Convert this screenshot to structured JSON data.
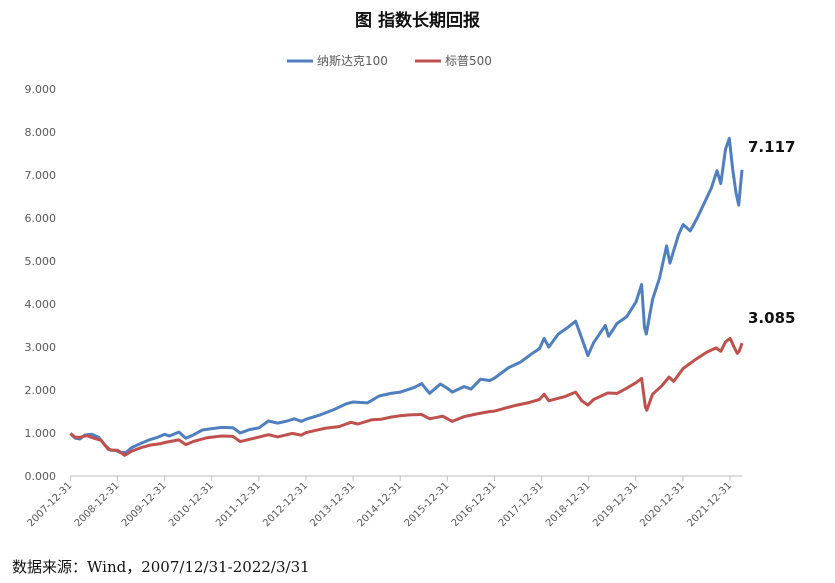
{
  "title": "图  指数长期回报",
  "source": "数据来源：Wind，2007/12/31-2022/3/31",
  "chart_data": {
    "type": "line",
    "title": "图  指数长期回报",
    "xlabel": "",
    "ylabel": "",
    "ylim": [
      0,
      9
    ],
    "yticks": [
      "0.000",
      "1.000",
      "2.000",
      "3.000",
      "4.000",
      "5.000",
      "6.000",
      "7.000",
      "8.000",
      "9.000"
    ],
    "xticks": [
      "2007-12-31",
      "2008-12-31",
      "2009-12-31",
      "2010-12-31",
      "2011-12-31",
      "2012-12-31",
      "2013-12-31",
      "2014-12-31",
      "2015-12-31",
      "2016-12-31",
      "2017-12-31",
      "2018-12-31",
      "2019-12-31",
      "2020-12-31",
      "2021-12-31"
    ],
    "x_range": [
      2007.99,
      2022.25
    ],
    "legend_position": "top-center",
    "grid": false,
    "series": [
      {
        "name": "纳斯达克100",
        "color": "#4F7FBF",
        "end_label": "7.117",
        "points": [
          [
            2008.0,
            0.98
          ],
          [
            2008.1,
            0.88
          ],
          [
            2008.2,
            0.86
          ],
          [
            2008.3,
            0.95
          ],
          [
            2008.45,
            0.97
          ],
          [
            2008.6,
            0.9
          ],
          [
            2008.75,
            0.7
          ],
          [
            2008.85,
            0.6
          ],
          [
            2008.95,
            0.6
          ],
          [
            2009.05,
            0.55
          ],
          [
            2009.18,
            0.55
          ],
          [
            2009.3,
            0.66
          ],
          [
            2009.5,
            0.76
          ],
          [
            2009.7,
            0.85
          ],
          [
            2009.85,
            0.9
          ],
          [
            2010.0,
            0.97
          ],
          [
            2010.1,
            0.93
          ],
          [
            2010.3,
            1.02
          ],
          [
            2010.45,
            0.88
          ],
          [
            2010.6,
            0.95
          ],
          [
            2010.8,
            1.07
          ],
          [
            2011.0,
            1.1
          ],
          [
            2011.2,
            1.13
          ],
          [
            2011.45,
            1.12
          ],
          [
            2011.6,
            1.0
          ],
          [
            2011.8,
            1.08
          ],
          [
            2012.0,
            1.12
          ],
          [
            2012.2,
            1.28
          ],
          [
            2012.4,
            1.23
          ],
          [
            2012.6,
            1.28
          ],
          [
            2012.75,
            1.33
          ],
          [
            2012.9,
            1.27
          ],
          [
            2013.0,
            1.32
          ],
          [
            2013.3,
            1.42
          ],
          [
            2013.6,
            1.55
          ],
          [
            2013.85,
            1.68
          ],
          [
            2014.0,
            1.72
          ],
          [
            2014.3,
            1.7
          ],
          [
            2014.55,
            1.86
          ],
          [
            2014.8,
            1.92
          ],
          [
            2015.0,
            1.95
          ],
          [
            2015.3,
            2.06
          ],
          [
            2015.45,
            2.15
          ],
          [
            2015.62,
            1.92
          ],
          [
            2015.85,
            2.14
          ],
          [
            2016.0,
            2.04
          ],
          [
            2016.1,
            1.95
          ],
          [
            2016.35,
            2.08
          ],
          [
            2016.5,
            2.02
          ],
          [
            2016.7,
            2.25
          ],
          [
            2016.9,
            2.22
          ],
          [
            2017.0,
            2.28
          ],
          [
            2017.3,
            2.52
          ],
          [
            2017.55,
            2.65
          ],
          [
            2017.8,
            2.85
          ],
          [
            2017.95,
            2.96
          ],
          [
            2018.05,
            3.2
          ],
          [
            2018.15,
            3.0
          ],
          [
            2018.35,
            3.3
          ],
          [
            2018.55,
            3.45
          ],
          [
            2018.72,
            3.6
          ],
          [
            2018.85,
            3.2
          ],
          [
            2018.98,
            2.8
          ],
          [
            2019.1,
            3.1
          ],
          [
            2019.35,
            3.5
          ],
          [
            2019.42,
            3.25
          ],
          [
            2019.6,
            3.55
          ],
          [
            2019.8,
            3.7
          ],
          [
            2020.0,
            4.05
          ],
          [
            2020.12,
            4.45
          ],
          [
            2020.18,
            3.45
          ],
          [
            2020.22,
            3.3
          ],
          [
            2020.35,
            4.1
          ],
          [
            2020.5,
            4.6
          ],
          [
            2020.65,
            5.35
          ],
          [
            2020.72,
            4.95
          ],
          [
            2020.9,
            5.6
          ],
          [
            2021.0,
            5.85
          ],
          [
            2021.15,
            5.7
          ],
          [
            2021.3,
            6.0
          ],
          [
            2021.45,
            6.35
          ],
          [
            2021.6,
            6.7
          ],
          [
            2021.72,
            7.1
          ],
          [
            2021.8,
            6.8
          ],
          [
            2021.9,
            7.6
          ],
          [
            2021.98,
            7.85
          ],
          [
            2022.05,
            7.15
          ],
          [
            2022.12,
            6.6
          ],
          [
            2022.18,
            6.3
          ],
          [
            2022.25,
            7.12
          ]
        ]
      },
      {
        "name": "标普500",
        "color": "#C0504D",
        "end_label": "3.085",
        "points": [
          [
            2008.0,
            0.99
          ],
          [
            2008.1,
            0.9
          ],
          [
            2008.2,
            0.9
          ],
          [
            2008.35,
            0.94
          ],
          [
            2008.5,
            0.88
          ],
          [
            2008.65,
            0.83
          ],
          [
            2008.8,
            0.62
          ],
          [
            2008.9,
            0.6
          ],
          [
            2009.0,
            0.6
          ],
          [
            2009.15,
            0.48
          ],
          [
            2009.3,
            0.58
          ],
          [
            2009.5,
            0.66
          ],
          [
            2009.7,
            0.72
          ],
          [
            2009.9,
            0.75
          ],
          [
            2010.0,
            0.78
          ],
          [
            2010.3,
            0.84
          ],
          [
            2010.45,
            0.73
          ],
          [
            2010.6,
            0.8
          ],
          [
            2010.9,
            0.89
          ],
          [
            2011.2,
            0.93
          ],
          [
            2011.45,
            0.92
          ],
          [
            2011.6,
            0.8
          ],
          [
            2011.9,
            0.88
          ],
          [
            2012.2,
            0.96
          ],
          [
            2012.4,
            0.91
          ],
          [
            2012.7,
            0.99
          ],
          [
            2012.9,
            0.95
          ],
          [
            2013.0,
            1.01
          ],
          [
            2013.4,
            1.11
          ],
          [
            2013.7,
            1.15
          ],
          [
            2013.95,
            1.25
          ],
          [
            2014.1,
            1.21
          ],
          [
            2014.4,
            1.31
          ],
          [
            2014.6,
            1.32
          ],
          [
            2014.8,
            1.37
          ],
          [
            2014.99,
            1.4
          ],
          [
            2015.2,
            1.42
          ],
          [
            2015.45,
            1.43
          ],
          [
            2015.62,
            1.33
          ],
          [
            2015.9,
            1.39
          ],
          [
            2016.1,
            1.27
          ],
          [
            2016.35,
            1.38
          ],
          [
            2016.6,
            1.44
          ],
          [
            2016.9,
            1.5
          ],
          [
            2017.0,
            1.51
          ],
          [
            2017.4,
            1.63
          ],
          [
            2017.7,
            1.7
          ],
          [
            2017.95,
            1.78
          ],
          [
            2018.05,
            1.9
          ],
          [
            2018.15,
            1.75
          ],
          [
            2018.5,
            1.85
          ],
          [
            2018.72,
            1.95
          ],
          [
            2018.85,
            1.75
          ],
          [
            2018.98,
            1.65
          ],
          [
            2019.1,
            1.78
          ],
          [
            2019.4,
            1.93
          ],
          [
            2019.6,
            1.92
          ],
          [
            2019.8,
            2.04
          ],
          [
            2020.0,
            2.17
          ],
          [
            2020.12,
            2.27
          ],
          [
            2020.2,
            1.6
          ],
          [
            2020.23,
            1.53
          ],
          [
            2020.35,
            1.9
          ],
          [
            2020.55,
            2.1
          ],
          [
            2020.7,
            2.3
          ],
          [
            2020.8,
            2.2
          ],
          [
            2021.0,
            2.5
          ],
          [
            2021.25,
            2.7
          ],
          [
            2021.5,
            2.88
          ],
          [
            2021.7,
            2.98
          ],
          [
            2021.8,
            2.9
          ],
          [
            2021.9,
            3.12
          ],
          [
            2022.0,
            3.2
          ],
          [
            2022.08,
            3.0
          ],
          [
            2022.15,
            2.85
          ],
          [
            2022.2,
            2.92
          ],
          [
            2022.25,
            3.09
          ]
        ]
      }
    ]
  }
}
